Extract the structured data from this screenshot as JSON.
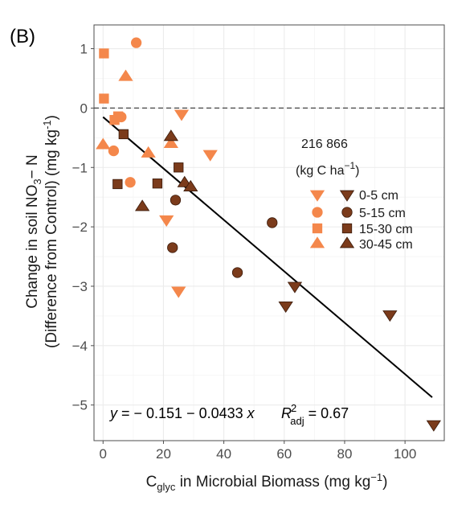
{
  "panel_label": "(B)",
  "colors": {
    "light": "#f4874b",
    "dark": "#7b3b1b",
    "stroke_dark": "#3a1a0a",
    "grid": "#ebebeb",
    "border": "#4d4d4d"
  },
  "chart_data": {
    "type": "scatter",
    "xlabel_prefix": "C",
    "xlabel_sub": "glyc",
    "xlabel_rest": " in Microbial Biomass (mg kg",
    "xlabel_sup": "−1",
    "xlabel_close": ")",
    "ylabel_line1_prefix": "Change in soil NO",
    "ylabel_line1_sub": "3",
    "ylabel_line1_rest": "− N",
    "ylabel_line2_prefix": "(Difference from Control) (mg kg",
    "ylabel_line2_sup": "-1",
    "ylabel_line2_close": ")",
    "xlim": [
      -3,
      113
    ],
    "ylim": [
      -5.6,
      1.4
    ],
    "xticks": [
      0,
      20,
      40,
      60,
      80,
      100
    ],
    "yticks": [
      1,
      0,
      -1,
      -2,
      -3,
      -4,
      -5
    ],
    "grid": true,
    "reference_line_y": 0,
    "regression": {
      "intercept": -0.151,
      "slope": -0.0433,
      "x_range": [
        0,
        109
      ]
    },
    "equation": {
      "lhs": "y",
      "rhs": " = − 0.151 − 0.0433 ",
      "var": "x",
      "r_symbol": "R",
      "r_sup": "2",
      "r_sub": "adj",
      "r_value": " = 0.67"
    },
    "legend": {
      "title_rates": "216   866",
      "title_units_prefix": "(kg C ha",
      "title_units_sup": "−1",
      "title_units_close": ")",
      "position": "right-center",
      "entries": [
        {
          "label": "0-5 cm",
          "shape": "triangle-down"
        },
        {
          "label": "5-15 cm",
          "shape": "circle"
        },
        {
          "label": "15-30 cm",
          "shape": "square"
        },
        {
          "label": "30-45 cm",
          "shape": "triangle-up"
        }
      ]
    },
    "series": [
      {
        "rate": "216",
        "depth": "0-5 cm",
        "shape": "triangle-down",
        "color": "#f4874b",
        "points": [
          [
            26,
            -0.1
          ],
          [
            35.5,
            -0.78
          ],
          [
            21,
            -1.88
          ],
          [
            25,
            -3.08
          ]
        ]
      },
      {
        "rate": "866",
        "depth": "0-5 cm",
        "shape": "triangle-down",
        "color": "#7b3b1b",
        "points": [
          [
            63.5,
            -3.0
          ],
          [
            60.5,
            -3.33
          ],
          [
            95,
            -3.48
          ],
          [
            109.5,
            -5.33
          ]
        ]
      },
      {
        "rate": "216",
        "depth": "5-15 cm",
        "shape": "circle",
        "color": "#f4874b",
        "points": [
          [
            11,
            1.1
          ],
          [
            6,
            -0.15
          ],
          [
            3.5,
            -0.72
          ],
          [
            9,
            -1.25
          ]
        ]
      },
      {
        "rate": "866",
        "depth": "5-15 cm",
        "shape": "circle",
        "color": "#7b3b1b",
        "points": [
          [
            24,
            -1.55
          ],
          [
            23,
            -2.35
          ],
          [
            44.5,
            -2.77
          ],
          [
            56,
            -1.93
          ]
        ]
      },
      {
        "rate": "216",
        "depth": "15-30 cm",
        "shape": "square",
        "color": "#f4874b",
        "points": [
          [
            0.3,
            0.92
          ],
          [
            0.3,
            0.16
          ],
          [
            3.8,
            -0.2
          ],
          [
            5,
            -0.14
          ]
        ]
      },
      {
        "rate": "866",
        "depth": "15-30 cm",
        "shape": "square",
        "color": "#7b3b1b",
        "points": [
          [
            6.8,
            -0.44
          ],
          [
            4.8,
            -1.28
          ],
          [
            18,
            -1.27
          ],
          [
            25,
            -1.0
          ]
        ]
      },
      {
        "rate": "216",
        "depth": "30-45 cm",
        "shape": "triangle-up",
        "color": "#f4874b",
        "points": [
          [
            7.5,
            0.53
          ],
          [
            0,
            -0.62
          ],
          [
            15,
            -0.76
          ],
          [
            22.5,
            -0.6
          ]
        ]
      },
      {
        "rate": "866",
        "depth": "30-45 cm",
        "shape": "triangle-up",
        "color": "#7b3b1b",
        "points": [
          [
            22.5,
            -0.48
          ],
          [
            13,
            -1.66
          ],
          [
            27,
            -1.26
          ],
          [
            29,
            -1.33
          ]
        ]
      }
    ]
  }
}
